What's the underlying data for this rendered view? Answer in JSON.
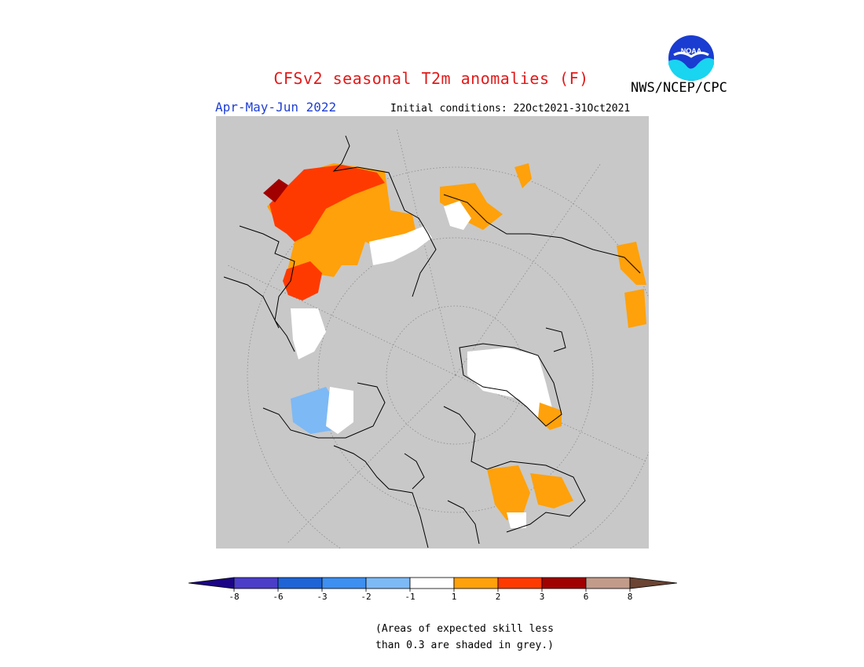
{
  "header": {
    "title": "CFSv2 seasonal T2m anomalies (F)",
    "season": "Apr-May-Jun 2022",
    "initial_conditions": "Initial conditions: 22Oct2021-31Oct2021",
    "agency": "NWS/NCEP/CPC",
    "logo_text": "NOAA"
  },
  "legend": {
    "tick_labels": [
      "-8",
      "-6",
      "-3",
      "-2",
      "-1",
      "1",
      "2",
      "3",
      "6",
      "8"
    ],
    "colors": [
      "#1c0487",
      "#4b3dc8",
      "#1e64d6",
      "#3d8ff0",
      "#7db9f5",
      "#ffffff",
      "#ffa10a",
      "#ff3a00",
      "#a10000",
      "#c29b8a",
      "#6b4433"
    ]
  },
  "note": {
    "line1": "(Areas of expected skill less",
    "line2": "than 0.3 are shaded in grey.)"
  },
  "map": {
    "projection": "north polar stereographic",
    "background_color": "#c8c8c8",
    "missing_skill_color": "#c8c8c8"
  }
}
